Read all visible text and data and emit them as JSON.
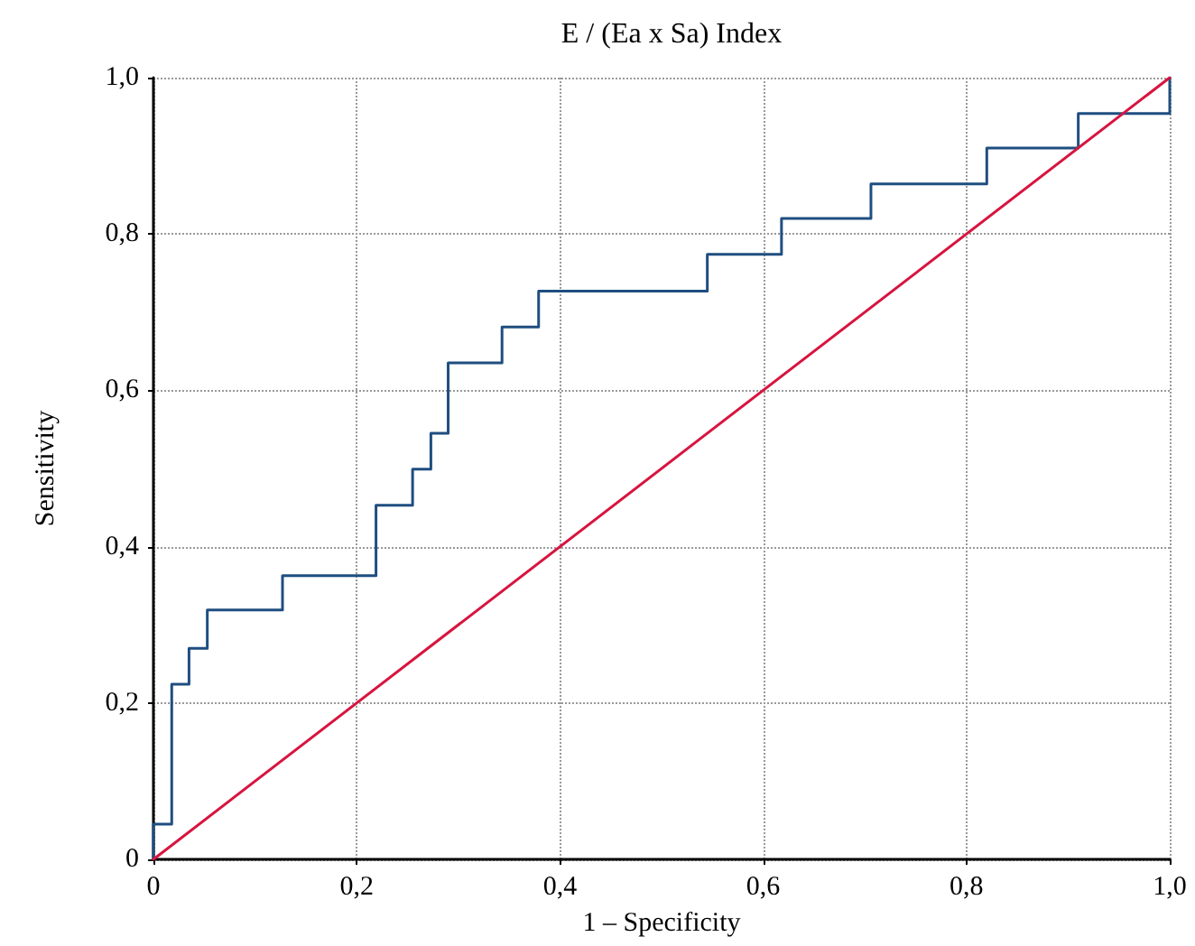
{
  "chart_data": {
    "type": "step",
    "title": "E / (Ea x Sa) Index",
    "xlabel": "1 – Specificity",
    "ylabel": "Sensitivity",
    "series": [
      {
        "color": "#1f4e80",
        "x": [
          0,
          0,
          0.018,
          0.035,
          0.053,
          0.127,
          0.219,
          0.255,
          0.273,
          0.29,
          0.343,
          0.379,
          0.545,
          0.618,
          0.706,
          0.82,
          0.91,
          1.0
        ],
        "values": [
          0,
          0.045,
          0.224,
          0.27,
          0.319,
          0.363,
          0.453,
          0.499,
          0.545,
          0.635,
          0.681,
          0.727,
          0.774,
          0.82,
          0.864,
          0.91,
          0.954,
          1.0
        ]
      },
      {
        "type": "line",
        "color": "#d7153f",
        "x": [
          0,
          1
        ],
        "values": [
          0,
          1
        ]
      }
    ],
    "xlim": [
      0,
      1
    ],
    "ylim": [
      0,
      1
    ],
    "xticks": [
      0,
      {
        "value": 0.2,
        "label": "0,2"
      },
      {
        "value": 0.4,
        "label": "0,4"
      },
      {
        "value": 0.6,
        "label": "0,6"
      },
      {
        "value": 0.8,
        "label": "0,8"
      },
      {
        "value": 1,
        "label": "1,0"
      }
    ],
    "yticks": [
      0,
      {
        "value": 0.2,
        "label": "0,2"
      },
      {
        "value": 0.4,
        "label": "0,4"
      },
      {
        "value": 0.6,
        "label": "0,6"
      },
      {
        "value": 0.8,
        "label": "0,8"
      },
      {
        "value": 1,
        "label": "1,0"
      }
    ],
    "grid": true,
    "marker": "none",
    "line_style": "solid"
  }
}
